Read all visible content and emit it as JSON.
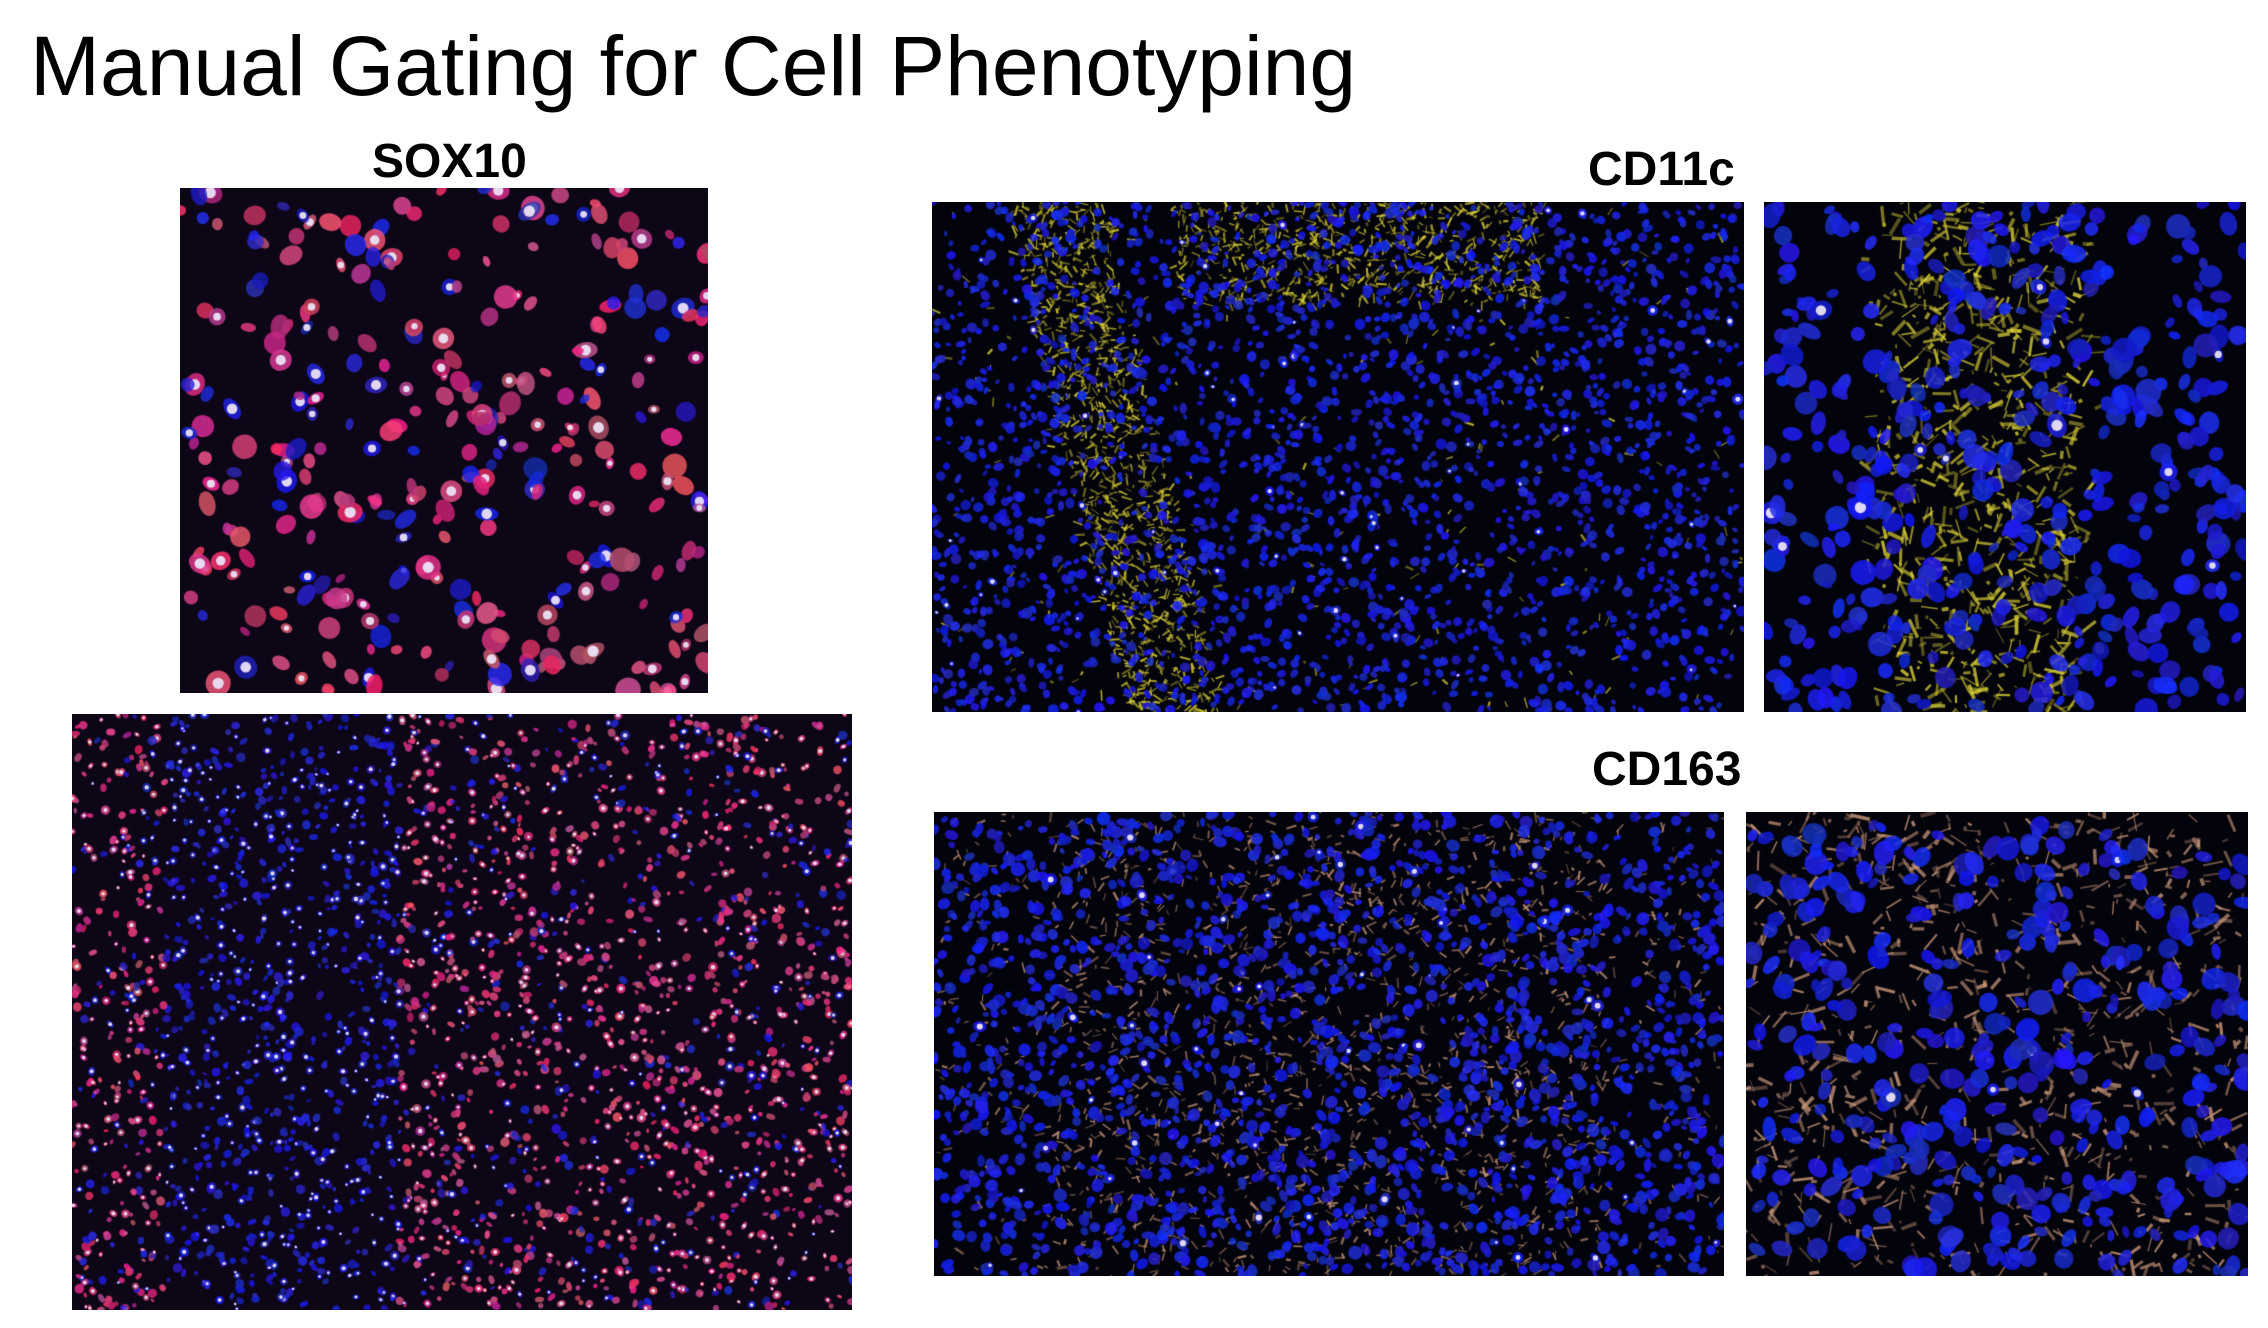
{
  "slide": {
    "title": "Manual Gating for Cell Phenotyping"
  },
  "markers": {
    "sox10": "SOX10",
    "cd11c": "CD11c",
    "cd163": "CD163"
  },
  "panels": [
    {
      "name": "sox10-zoom-panel",
      "marker_color": "#e0306a",
      "nucleus_color": "#1a1ae0"
    },
    {
      "name": "sox10-overview-panel",
      "marker_color": "#e0306a",
      "nucleus_color": "#1a1ae0"
    },
    {
      "name": "cd11c-overview-panel",
      "marker_color": "#d8d030",
      "nucleus_color": "#1a1ae0"
    },
    {
      "name": "cd11c-zoom-panel",
      "marker_color": "#d8d030",
      "nucleus_color": "#1a1ae0"
    },
    {
      "name": "cd163-overview-panel",
      "marker_color": "#c89070",
      "nucleus_color": "#1a1ae0"
    },
    {
      "name": "cd163-zoom-panel",
      "marker_color": "#c89070",
      "nucleus_color": "#1a1ae0"
    }
  ]
}
